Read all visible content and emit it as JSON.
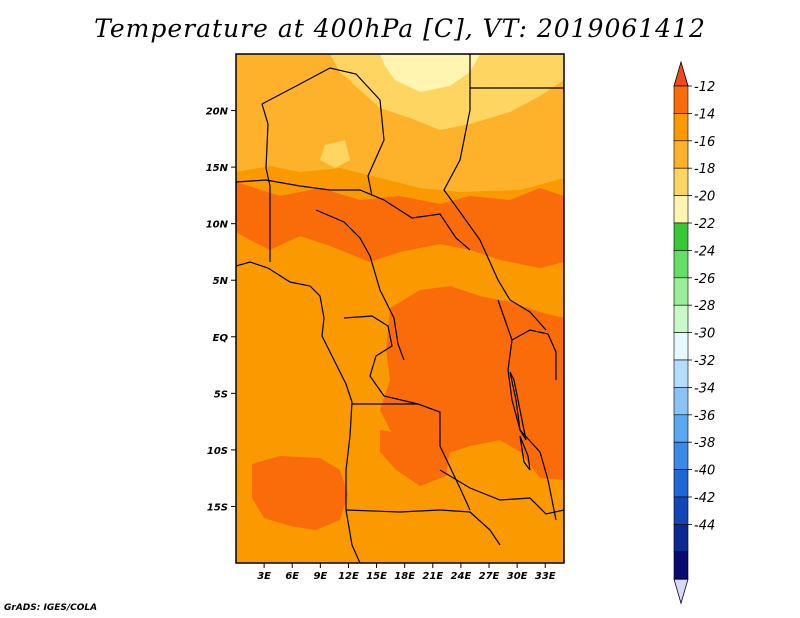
{
  "title": "Temperature at 400hPa [C], VT: 2019061412",
  "credit": "GrADS: IGES/COLA",
  "map": {
    "lon_ticks": [
      "3E",
      "6E",
      "9E",
      "12E",
      "15E",
      "18E",
      "21E",
      "24E",
      "27E",
      "30E",
      "33E"
    ],
    "lat_ticks": [
      "20N",
      "15N",
      "10N",
      "5N",
      "EQ",
      "5S",
      "10S",
      "15S"
    ],
    "lon_range": [
      0,
      35
    ],
    "lat_range": [
      -20,
      25
    ]
  },
  "colorbar": {
    "labels": [
      "-12",
      "-14",
      "-16",
      "-18",
      "-20",
      "-22",
      "-24",
      "-26",
      "-28",
      "-30",
      "-32",
      "-34",
      "-36",
      "-38",
      "-40",
      "-42",
      "-44"
    ],
    "colors": [
      "#ee4a1e",
      "#fa6c0a",
      "#fb9a00",
      "#feb22b",
      "#ffd562",
      "#fff4b0",
      "#37c737",
      "#66dd66",
      "#99ee99",
      "#c8fac8",
      "#e6fafe",
      "#b5dcfb",
      "#8ac4f7",
      "#5aa8f2",
      "#3d89e8",
      "#1f66d6",
      "#1346b5",
      "#0a2a92",
      "#0a0a73",
      "#d8d8f8"
    ]
  },
  "colors": {
    "base": "#fb9a00",
    "warm": "#fa6c0a",
    "light": "#feb22b",
    "lighter": "#ffd562",
    "lightest": "#fff4b0",
    "borders": "#000000"
  }
}
